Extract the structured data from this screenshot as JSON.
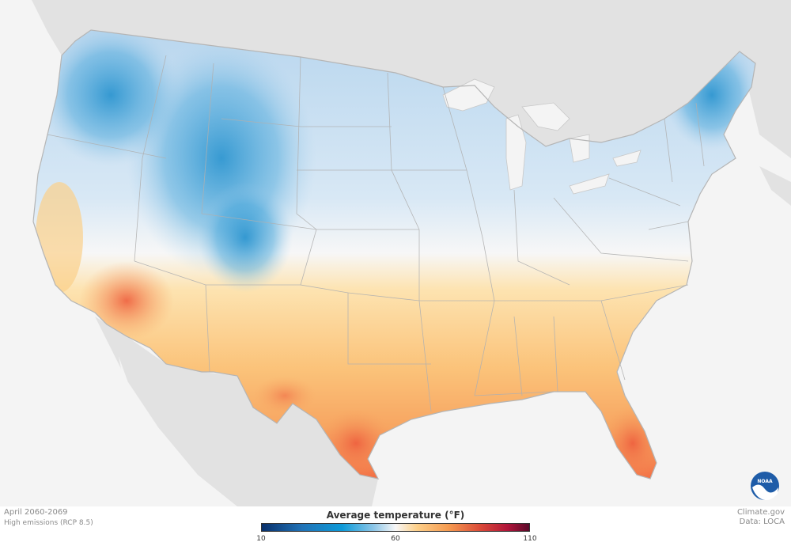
{
  "caption": {
    "period": "April 2060-2069",
    "scenario": "High emissions (RCP 8.5)",
    "site": "Climate.gov",
    "source": "Data: LOCA"
  },
  "legend": {
    "title": "Average temperature (°F)",
    "min": "10",
    "mid": "60",
    "max": "110"
  },
  "logo": {
    "text": "NOAA"
  },
  "colors": {
    "cold": "#0d9ad8",
    "cool": "#cfe3f3",
    "neutral": "#f7f7f7",
    "warm": "#fdd08a",
    "hot": "#f26b43",
    "background": "#f4f4f4",
    "land_outside": "#e2e2e2"
  }
}
